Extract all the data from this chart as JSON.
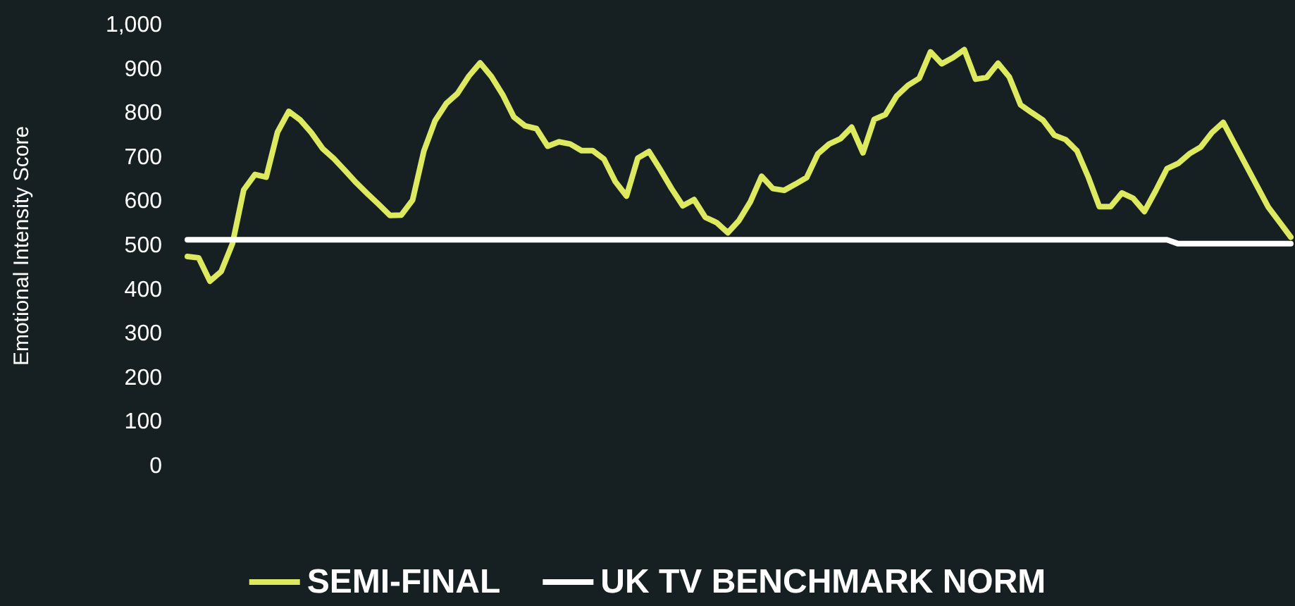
{
  "chart_data": {
    "type": "line",
    "ylabel": "Emotional Intensity Score",
    "categories": [
      null,
      null,
      null,
      null,
      null,
      null,
      null,
      null,
      null,
      null,
      null,
      null,
      null,
      null,
      null,
      null,
      null,
      null,
      null,
      null,
      null,
      null,
      null,
      null,
      null,
      null,
      null,
      null,
      null,
      null,
      null,
      null,
      null,
      null,
      null,
      null,
      null,
      null,
      null,
      null,
      null,
      null,
      null,
      null,
      null,
      null,
      null,
      null,
      null,
      null,
      null,
      null,
      null,
      null,
      null,
      null,
      null,
      null,
      null,
      null,
      null,
      null,
      null,
      null,
      null,
      null,
      null,
      null,
      null,
      null,
      null,
      null,
      null,
      null,
      null,
      null,
      null,
      null,
      null,
      null,
      null,
      null,
      null,
      null,
      null,
      null,
      null,
      null,
      null,
      null,
      null,
      null,
      null,
      null,
      null,
      null,
      null,
      null,
      null
    ],
    "series": [
      {
        "name": "SEMI-FINAL",
        "color": "#dde95f",
        "values": [
          476,
          473,
          420,
          442,
          505,
          627,
          662,
          656,
          758,
          805,
          786,
          757,
          721,
          698,
          671,
          643,
          618,
          594,
          569,
          570,
          604,
          715,
          784,
          823,
          846,
          885,
          915,
          884,
          843,
          792,
          772,
          766,
          726,
          736,
          731,
          716,
          716,
          697,
          646,
          613,
          699,
          714,
          673,
          630,
          591,
          605,
          565,
          553,
          530,
          558,
          600,
          658,
          630,
          626,
          640,
          655,
          709,
          731,
          743,
          769,
          711,
          787,
          798,
          840,
          864,
          880,
          940,
          913,
          927,
          945,
          878,
          882,
          914,
          883,
          820,
          802,
          785,
          751,
          741,
          716,
          657,
          589,
          589,
          620,
          608,
          578,
          625,
          675,
          687,
          709,
          724,
          757,
          780,
          732,
          684,
          636,
          588,
          554,
          520
        ]
      },
      {
        "name": "UK TV BENCHMARK NORM",
        "color": "#ffffff",
        "values": [
          514,
          514,
          514,
          514,
          514,
          514,
          514,
          514,
          514,
          514,
          514,
          514,
          514,
          514,
          514,
          514,
          514,
          514,
          514,
          514,
          514,
          514,
          514,
          514,
          514,
          514,
          514,
          514,
          514,
          514,
          514,
          514,
          514,
          514,
          514,
          514,
          514,
          514,
          514,
          514,
          514,
          514,
          514,
          514,
          514,
          514,
          514,
          514,
          514,
          514,
          514,
          514,
          514,
          514,
          514,
          514,
          514,
          514,
          514,
          514,
          514,
          514,
          514,
          514,
          514,
          514,
          514,
          514,
          514,
          514,
          514,
          514,
          514,
          514,
          514,
          514,
          514,
          514,
          514,
          514,
          514,
          514,
          514,
          514,
          514,
          514,
          514,
          514,
          505,
          505,
          505,
          505,
          505,
          505,
          505,
          505,
          505,
          505,
          505
        ]
      }
    ],
    "ylim": [
      0,
      1000
    ],
    "yticks": [
      0,
      100,
      200,
      300,
      400,
      500,
      600,
      700,
      800,
      900,
      {
        "value": 1000,
        "label": "1,000"
      }
    ],
    "grid": false,
    "legend": "bottom",
    "marker": "none",
    "line_style": "solid"
  }
}
